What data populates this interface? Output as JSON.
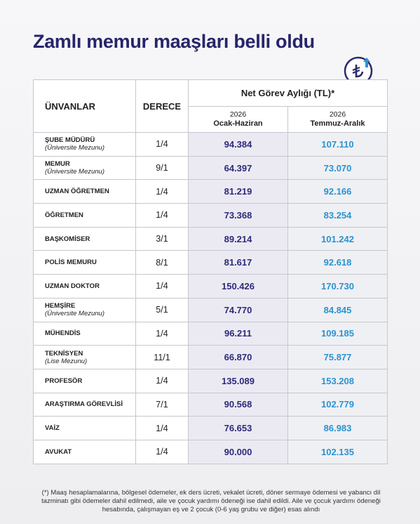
{
  "header": {
    "title": "Zamlı memur maaşları belli oldu"
  },
  "table": {
    "columns": [
      "ÜNVANLAR",
      "DERECE",
      "Net Görev Aylığı (TL)*"
    ],
    "periods": [
      {
        "year": "2026",
        "label": "Ocak-Haziran"
      },
      {
        "year": "2026",
        "label": "Temmuz-Aralık"
      }
    ],
    "rows": [
      {
        "title": "ŞUBE MÜDÜRÜ",
        "subtitle": "(Üniversite Mezunu)",
        "grade": "1/4",
        "first": "94.384",
        "second": "107.110"
      },
      {
        "title": "MEMUR",
        "subtitle": "(Üniversite Mezunu)",
        "grade": "9/1",
        "first": "64.397",
        "second": "73.070"
      },
      {
        "title": "UZMAN ÖĞRETMEN",
        "grade": "1/4",
        "first": "81.219",
        "second": "92.166"
      },
      {
        "title": "ÖĞRETMEN",
        "grade": "1/4",
        "first": "73.368",
        "second": "83.254"
      },
      {
        "title": "BAŞKOMİSER",
        "grade": "3/1",
        "first": "89.214",
        "second": "101.242"
      },
      {
        "title": "POLİS MEMURU",
        "grade": "8/1",
        "first": "81.617",
        "second": "92.618"
      },
      {
        "title": "UZMAN DOKTOR",
        "grade": "1/4",
        "first": "150.426",
        "second": "170.730"
      },
      {
        "title": "HEMŞİRE",
        "subtitle": "(Üniversite Mezunu)",
        "grade": "5/1",
        "first": "74.770",
        "second": "84.845"
      },
      {
        "title": "MÜHENDİS",
        "grade": "1/4",
        "first": "96.211",
        "second": "109.185"
      },
      {
        "title": "TEKNİSYEN",
        "subtitle": "(Lise Mezunu)",
        "grade": "11/1",
        "first": "66.870",
        "second": "75.877"
      },
      {
        "title": "PROFESÖR",
        "grade": "1/4",
        "first": "135.089",
        "second": "153.208"
      },
      {
        "title": "ARAŞTIRMA GÖREVLİSİ",
        "grade": "7/1",
        "first": "90.568",
        "second": "102.779"
      },
      {
        "title": "VAİZ",
        "grade": "1/4",
        "first": "76.653",
        "second": "86.983"
      },
      {
        "title": "AVUKAT",
        "grade": "1/4",
        "first": "90.000",
        "second": "102.135"
      }
    ]
  },
  "footnote": "(*) Maaş hesaplamalarına, bölgesel ödemeler, ek ders ücreti, vekalet ücreti, döner sermaye ödemesi ve yabancı dil tazminatı gibi ödemeler dahil edilmedi, aile ve çocuk yardımı ödeneği ise dahil edildi. Aile ve çocuk yardımı ödeneği hesabında, çalışmayan eş ve 2 çocuk (0-6 yaş grubu ve diğer) esas alındı"
}
